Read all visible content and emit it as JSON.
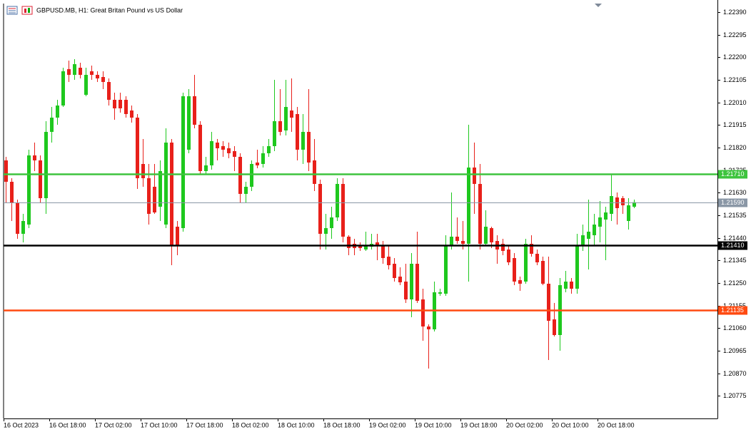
{
  "chart_data": {
    "type": "candlestick",
    "title": "GBPUSD.MB, H1:  Great Britan Pound vs US Dollar",
    "categories": [
      "16 Oct 2023",
      null,
      null,
      null,
      null,
      null,
      null,
      null,
      "16 Oct 18:00",
      null,
      null,
      null,
      null,
      null,
      null,
      null,
      "17 Oct 02:00",
      null,
      null,
      null,
      null,
      null,
      null,
      null,
      "17 Oct 10:00",
      null,
      null,
      null,
      null,
      null,
      null,
      null,
      "17 Oct 18:00",
      null,
      null,
      null,
      null,
      null,
      null,
      null,
      "18 Oct 02:00",
      null,
      null,
      null,
      null,
      null,
      null,
      null,
      "18 Oct 10:00",
      null,
      null,
      null,
      null,
      null,
      null,
      null,
      "18 Oct 18:00",
      null,
      null,
      null,
      null,
      null,
      null,
      null,
      "19 Oct 02:00",
      null,
      null,
      null,
      null,
      null,
      null,
      null,
      "19 Oct 10:00",
      null,
      null,
      null,
      null,
      null,
      null,
      null,
      "19 Oct 18:00",
      null,
      null,
      null,
      null,
      null,
      null,
      null,
      "20 Oct 02:00",
      null,
      null,
      null,
      null,
      null,
      null,
      null,
      "20 Oct 10:00",
      null,
      null,
      null,
      null,
      null,
      null,
      null,
      "20 Oct 18:00",
      null,
      null,
      null,
      null,
      null,
      null
    ],
    "open": [
      1.21766,
      1.21676,
      1.21586,
      1.21457,
      1.21496,
      1.21787,
      1.21766,
      1.21607,
      1.21886,
      1.21946,
      1.21997,
      1.2215,
      1.22126,
      1.22156,
      1.22042,
      1.22141,
      1.22126,
      1.22117,
      1.22096,
      1.22021,
      1.22021,
      1.22021,
      1.21976,
      1.21946,
      1.21751,
      1.21691,
      1.21655,
      1.21571,
      1.21496,
      1.21841,
      1.21487,
      1.21481,
      1.21811,
      1.22036,
      1.21916,
      1.21721,
      1.21745,
      1.21841,
      1.21826,
      1.21817,
      1.21805,
      1.21781,
      1.21625,
      1.21655,
      1.21757,
      1.21751,
      1.21796,
      1.21826,
      1.21931,
      1.21892,
      1.21976,
      1.21961,
      1.21811,
      1.21886,
      1.21766,
      1.21667,
      1.21457,
      1.21481,
      1.21526,
      1.21667,
      1.21445,
      1.21415,
      1.21409,
      1.21391,
      1.21403,
      1.21421,
      1.21406,
      1.21361,
      1.21331,
      1.21277,
      1.21256,
      1.21181,
      1.21331,
      1.21181,
      1.21067,
      1.21055,
      1.21205,
      1.21205,
      1.21406,
      1.21445,
      1.21427,
      1.21415,
      1.21736,
      1.21667,
      1.21415,
      1.21481,
      1.21427,
      1.21415,
      1.21391,
      1.21355,
      1.21262,
      1.21256,
      1.21415,
      1.21373,
      1.21343,
      1.21247,
      1.21097,
      1.21031,
      1.21226,
      1.21256,
      1.21226,
      1.21406,
      1.21436,
      1.21451,
      1.21487,
      1.21517,
      1.21541,
      1.2161,
      1.21607,
      1.21511,
      1.21571
    ],
    "high": [
      1.21781,
      1.21691,
      1.21601,
      1.21541,
      1.21811,
      1.21841,
      1.21787,
      1.21931,
      1.21991,
      1.22021,
      1.22156,
      1.22186,
      1.22192,
      1.22177,
      1.22156,
      1.22165,
      1.22141,
      1.22141,
      1.22111,
      1.22051,
      1.22051,
      1.22036,
      1.21997,
      1.21961,
      1.21856,
      1.21751,
      1.21751,
      1.21766,
      1.21901,
      1.21856,
      1.21511,
      1.22051,
      1.22066,
      1.22126,
      1.21931,
      1.21781,
      1.21886,
      1.21856,
      1.21847,
      1.21841,
      1.21826,
      1.21796,
      1.21676,
      1.21766,
      1.21811,
      1.21826,
      1.21856,
      1.22105,
      1.22066,
      1.22105,
      1.22111,
      1.21991,
      1.21961,
      1.22066,
      1.21856,
      1.21685,
      1.21541,
      1.21571,
      1.21691,
      1.21691,
      1.21451,
      1.21436,
      1.21421,
      1.21466,
      1.21457,
      1.21457,
      1.21427,
      1.21406,
      1.21355,
      1.21316,
      1.21331,
      1.21376,
      1.21466,
      1.21226,
      1.21076,
      1.21256,
      1.21226,
      1.21451,
      1.21631,
      1.21526,
      1.21511,
      1.21916,
      1.21841,
      1.21751,
      1.21556,
      1.21487,
      1.21451,
      1.21436,
      1.21406,
      1.21376,
      1.21277,
      1.21436,
      1.21451,
      1.21391,
      1.21361,
      1.21361,
      1.21166,
      1.21271,
      1.21301,
      1.21271,
      1.21457,
      1.21496,
      1.21601,
      1.21541,
      1.21595,
      1.21571,
      1.21706,
      1.21631,
      1.21616,
      1.21607,
      1.21601
    ],
    "low": [
      1.21586,
      1.21511,
      1.21436,
      1.21421,
      1.21481,
      1.21721,
      1.21586,
      1.21541,
      1.21841,
      1.21916,
      1.21991,
      1.22096,
      1.22105,
      1.22111,
      1.22036,
      1.22105,
      1.22096,
      1.22066,
      1.21997,
      1.21937,
      1.21967,
      1.21946,
      1.21925,
      1.21646,
      1.21655,
      1.21496,
      1.21541,
      1.21511,
      1.21481,
      1.21325,
      1.21367,
      1.21466,
      1.21796,
      1.21901,
      1.21706,
      1.21706,
      1.21727,
      1.21766,
      1.21781,
      1.21775,
      1.21721,
      1.21586,
      1.21586,
      1.21637,
      1.21733,
      1.21736,
      1.21781,
      1.21805,
      1.21871,
      1.21871,
      1.21886,
      1.21766,
      1.21751,
      1.21721,
      1.21637,
      1.21391,
      1.21391,
      1.21436,
      1.21511,
      1.21421,
      1.21367,
      1.21367,
      1.21385,
      1.21385,
      1.21391,
      1.21346,
      1.21331,
      1.21307,
      1.21256,
      1.21241,
      1.21166,
      1.21106,
      1.21166,
      1.21007,
      1.2089,
      1.21046,
      1.21196,
      1.21196,
      1.21391,
      1.21415,
      1.21391,
      1.21256,
      1.21541,
      1.21391,
      1.21406,
      1.21397,
      1.21331,
      1.21367,
      1.21325,
      1.21241,
      1.21217,
      1.21247,
      1.21361,
      1.21325,
      1.21241,
      1.20926,
      1.21025,
      1.20965,
      1.21211,
      1.21205,
      1.21205,
      1.21385,
      1.21307,
      1.21406,
      1.21421,
      1.21346,
      1.21511,
      1.21496,
      1.21541,
      1.21475,
      1.21565
    ],
    "close": [
      1.21676,
      1.21586,
      1.21457,
      1.21511,
      1.21787,
      1.21766,
      1.21607,
      1.21886,
      1.21946,
      1.21997,
      1.22141,
      1.22126,
      1.22171,
      1.22126,
      1.22126,
      1.22126,
      1.22111,
      1.22096,
      1.22021,
      1.21985,
      1.21985,
      1.21961,
      1.21946,
      1.21691,
      1.21691,
      1.21541,
      1.21547,
      1.21721,
      1.21841,
      1.21406,
      1.21406,
      1.22036,
      1.22036,
      1.21916,
      1.21721,
      1.21745,
      1.21847,
      1.21817,
      1.21811,
      1.21796,
      1.21781,
      1.21625,
      1.21655,
      1.21751,
      1.21745,
      1.21796,
      1.21826,
      1.21931,
      1.21886,
      1.21991,
      1.21946,
      1.21811,
      1.21886,
      1.21757,
      1.21667,
      1.21457,
      1.21481,
      1.21526,
      1.21667,
      1.21445,
      1.21397,
      1.21397,
      1.21397,
      1.21409,
      1.21415,
      1.21406,
      1.21355,
      1.21325,
      1.21271,
      1.21253,
      1.21181,
      1.21331,
      1.21175,
      1.21067,
      1.21055,
      1.21211,
      1.21211,
      1.21406,
      1.21445,
      1.21427,
      1.21415,
      1.21736,
      1.21667,
      1.21415,
      1.21487,
      1.21421,
      1.21391,
      1.21385,
      1.21337,
      1.21256,
      1.21247,
      1.21415,
      1.21373,
      1.21337,
      1.21247,
      1.21091,
      1.21031,
      1.21241,
      1.21256,
      1.21226,
      1.21406,
      1.21451,
      1.21466,
      1.21496,
      1.21526,
      1.21547,
      1.21616,
      1.21565,
      1.21577,
      1.21577,
      1.2159
    ],
    "up_color": "#1ec81e",
    "down_color": "#e8201a",
    "ylim": [
      1.2068,
      1.22426
    ],
    "yticks": [
      {
        "value": 1.2239,
        "label": "1.22390"
      },
      1.22295,
      {
        "value": 1.222,
        "label": "1.22200"
      },
      1.22105,
      {
        "value": 1.2201,
        "label": "1.22010"
      },
      1.21915,
      {
        "value": 1.2182,
        "label": "1.21820"
      },
      1.21725,
      {
        "value": 1.2163,
        "label": "1.21630"
      },
      1.21535,
      {
        "value": 1.2144,
        "label": "1.21440"
      },
      1.21345,
      {
        "value": 1.2125,
        "label": "1.21250"
      },
      1.21155,
      {
        "value": 1.2106,
        "label": "1.21060"
      },
      1.20965,
      {
        "value": 1.2087,
        "label": "1.20870"
      },
      1.20775
    ],
    "levels": [
      {
        "value": 1.2171,
        "label": "1.21710",
        "color": "#3ec43e"
      },
      {
        "value": 1.2159,
        "label": "1.21590",
        "color": "#8a97a6"
      },
      {
        "value": 1.2141,
        "label": "1.21410",
        "color": "#000000"
      },
      {
        "value": 1.21135,
        "label": "1.21135",
        "color": "#ff4a10"
      }
    ]
  }
}
